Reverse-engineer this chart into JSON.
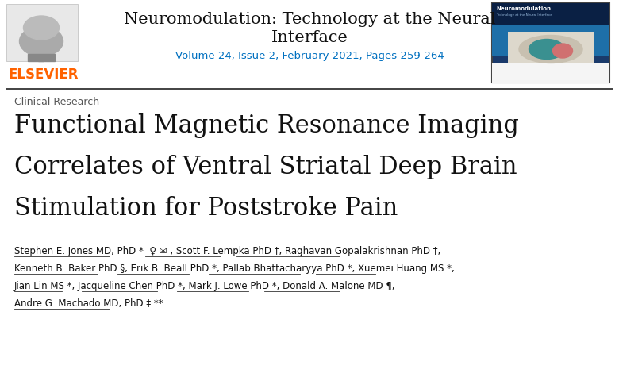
{
  "background_color": "#ffffff",
  "header_line_color": "#222222",
  "elsevier_color": "#FF6200",
  "journal_title_line1": "Neuromodulation: Technology at the Neural",
  "journal_title_line2": "Interface",
  "journal_title_color": "#111111",
  "journal_title_fontsize": 15,
  "volume_info": "Volume 24, Issue 2, February 2021, Pages 259-264",
  "volume_info_color": "#0070C0",
  "volume_info_fontsize": 9.5,
  "section_label": "Clinical Research",
  "section_label_color": "#555555",
  "section_label_fontsize": 9,
  "paper_title_line1": "Functional Magnetic Resonance Imaging",
  "paper_title_line2": "Correlates of Ventral Striatal Deep Brain",
  "paper_title_line3": "Stimulation for Poststroke Pain",
  "paper_title_color": "#111111",
  "paper_title_fontsize": 22,
  "authors_line1": "Stephen E. Jones MD, PhD ★  ♀ ✉ , Scott F. Lempka PhD †, Raghavan Gopalakrishnan PhD ‡,",
  "authors_line2": "Kenneth B. Baker PhD §, Erik B. Beall PhD ★, Pallab Bhattacharyya PhD ★, Xuemei Huang MS ★,",
  "authors_line3": "Jian Lin MS ★, Jacqueline Chen PhD ★, Mark J. Lowe PhD ★, Donald A. Malone MD ¶,",
  "authors_line4": "Andre G. Machado MD, PhD ‡ ★★",
  "authors_color": "#111111",
  "authors_fontsize": 8.5,
  "elsevier_text": "ELSEVIER",
  "elsevier_fontsize": 12
}
